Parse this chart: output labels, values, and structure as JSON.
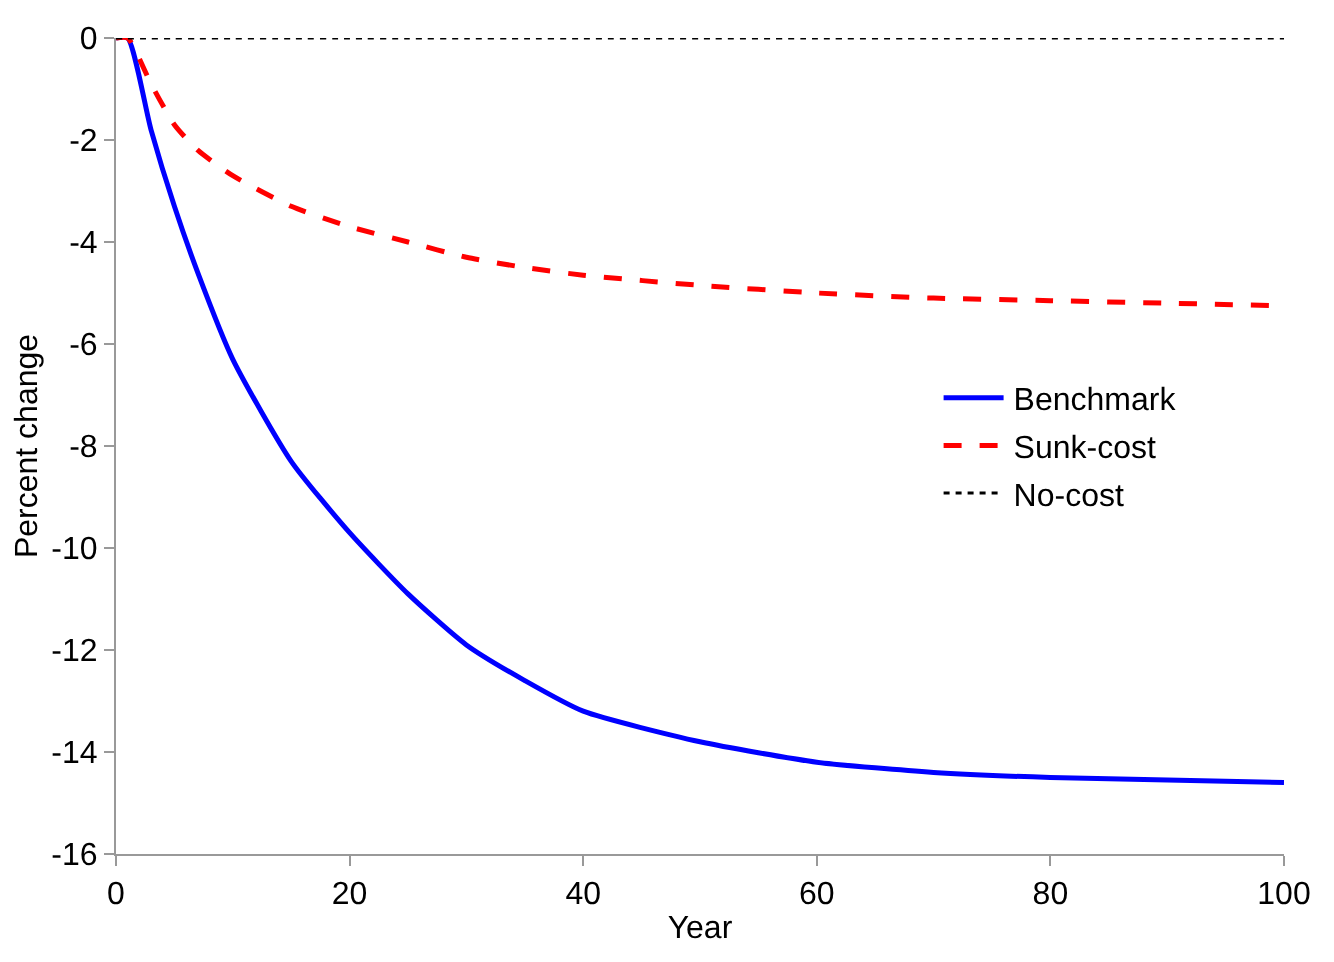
{
  "chart_data": {
    "type": "line",
    "xlabel": "Year",
    "ylabel": "Percent change",
    "x": [
      0,
      1,
      3,
      5,
      7,
      10,
      15,
      20,
      25,
      30,
      35,
      40,
      50,
      60,
      70,
      80,
      90,
      100
    ],
    "series": [
      {
        "name": "Benchmark",
        "color": "#0000ff",
        "line_style": "solid",
        "values": [
          0,
          0,
          -1.8,
          -3.3,
          -4.6,
          -6.3,
          -8.3,
          -9.7,
          -10.9,
          -11.9,
          -12.6,
          -13.2,
          -13.8,
          -14.2,
          -14.4,
          -14.5,
          -14.55,
          -14.6
        ]
      },
      {
        "name": "Sunk-cost",
        "color": "#ff0000",
        "line_style": "dashed",
        "values": [
          0,
          0,
          -0.9,
          -1.7,
          -2.2,
          -2.7,
          -3.3,
          -3.7,
          -4.0,
          -4.3,
          -4.5,
          -4.65,
          -4.85,
          -5.0,
          -5.1,
          -5.15,
          -5.2,
          -5.25
        ]
      },
      {
        "name": "No-cost",
        "color": "#000000",
        "line_style": "dotted",
        "values": [
          0,
          0,
          0,
          0,
          0,
          0,
          0,
          0,
          0,
          0,
          0,
          0,
          0,
          0,
          0,
          0,
          0,
          0
        ]
      }
    ],
    "xlim": [
      0,
      100
    ],
    "xticks": [
      0,
      20,
      40,
      60,
      80,
      100
    ],
    "ylim": [
      -16,
      0
    ],
    "yticks": [
      0,
      -2,
      -4,
      -6,
      -8,
      -10,
      -12,
      -14,
      -16
    ],
    "legend": "right",
    "marker": "none"
  }
}
